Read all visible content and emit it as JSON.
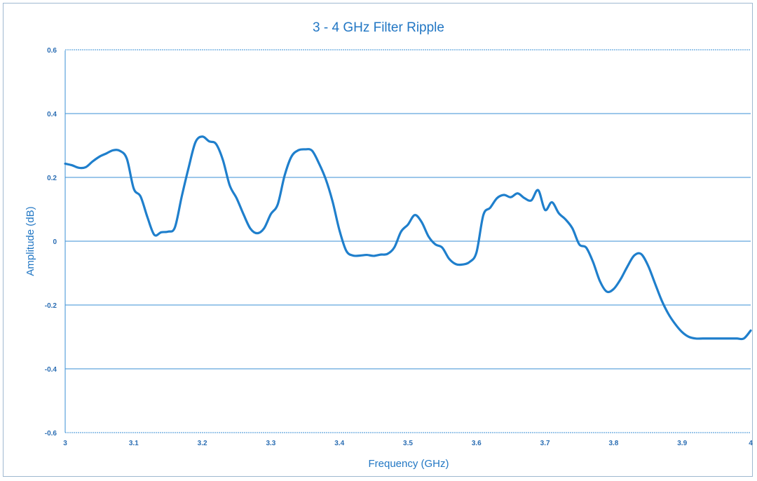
{
  "chart_data": {
    "type": "line",
    "title": "3 - 4 GHz Filter Ripple",
    "xlabel": "Frequency (GHz)",
    "ylabel": "Amplitude (dB)",
    "xlim": [
      3,
      4
    ],
    "ylim": [
      -0.6,
      0.6
    ],
    "x_ticks": [
      3,
      3.1,
      3.2,
      3.3,
      3.4,
      3.5,
      3.6,
      3.7,
      3.8,
      3.9,
      4
    ],
    "x_tick_labels": [
      "3",
      "3.1",
      "3.2",
      "3.3",
      "3.4",
      "3.5",
      "3.6",
      "3.7",
      "3.8",
      "3.9",
      "4"
    ],
    "y_ticks": [
      0.6,
      0.4,
      0.2,
      0,
      -0.2,
      -0.4,
      -0.6
    ],
    "y_tick_labels": [
      "0.6",
      "0.4",
      "0.2",
      "0",
      "-0.2",
      "-0.4",
      "-0.6"
    ],
    "grid": true,
    "legend": "none",
    "colors": {
      "line": "#1f7fcc",
      "grid": "#3a8fd6",
      "text": "#2277c4"
    },
    "series": [
      {
        "x": [
          3.0,
          3.01,
          3.02,
          3.03,
          3.04,
          3.05,
          3.06,
          3.07,
          3.08,
          3.09,
          3.1,
          3.11,
          3.12,
          3.13,
          3.14,
          3.15,
          3.16,
          3.17,
          3.18,
          3.19,
          3.2,
          3.21,
          3.22,
          3.23,
          3.24,
          3.25,
          3.26,
          3.27,
          3.28,
          3.29,
          3.3,
          3.31,
          3.32,
          3.33,
          3.34,
          3.35,
          3.36,
          3.37,
          3.38,
          3.39,
          3.4,
          3.41,
          3.42,
          3.43,
          3.44,
          3.45,
          3.46,
          3.47,
          3.48,
          3.49,
          3.5,
          3.51,
          3.52,
          3.53,
          3.54,
          3.55,
          3.56,
          3.57,
          3.58,
          3.59,
          3.6,
          3.61,
          3.62,
          3.63,
          3.64,
          3.65,
          3.66,
          3.67,
          3.68,
          3.69,
          3.7,
          3.71,
          3.72,
          3.73,
          3.74,
          3.75,
          3.76,
          3.77,
          3.78,
          3.79,
          3.8,
          3.81,
          3.82,
          3.83,
          3.84,
          3.85,
          3.86,
          3.87,
          3.88,
          3.89,
          3.9,
          3.91,
          3.92,
          3.93,
          3.94,
          3.95,
          3.96,
          3.97,
          3.98,
          3.99,
          4.0
        ],
        "y": [
          0.243,
          0.238,
          0.23,
          0.232,
          0.25,
          0.265,
          0.275,
          0.285,
          0.283,
          0.258,
          0.165,
          0.14,
          0.075,
          0.02,
          0.028,
          0.03,
          0.043,
          0.14,
          0.23,
          0.31,
          0.328,
          0.313,
          0.305,
          0.255,
          0.175,
          0.135,
          0.085,
          0.04,
          0.025,
          0.04,
          0.085,
          0.115,
          0.205,
          0.265,
          0.285,
          0.288,
          0.284,
          0.245,
          0.195,
          0.125,
          0.035,
          -0.03,
          -0.045,
          -0.045,
          -0.043,
          -0.046,
          -0.042,
          -0.04,
          -0.02,
          0.03,
          0.052,
          0.082,
          0.06,
          0.015,
          -0.01,
          -0.02,
          -0.055,
          -0.072,
          -0.073,
          -0.065,
          -0.035,
          0.082,
          0.105,
          0.135,
          0.145,
          0.138,
          0.15,
          0.135,
          0.128,
          0.16,
          0.098,
          0.122,
          0.088,
          0.068,
          0.04,
          -0.01,
          -0.02,
          -0.065,
          -0.125,
          -0.158,
          -0.15,
          -0.12,
          -0.08,
          -0.045,
          -0.04,
          -0.075,
          -0.13,
          -0.185,
          -0.228,
          -0.26,
          -0.285,
          -0.3,
          -0.305,
          -0.305,
          -0.305,
          -0.305,
          -0.305,
          -0.305,
          -0.305,
          -0.305,
          -0.28
        ]
      }
    ]
  }
}
